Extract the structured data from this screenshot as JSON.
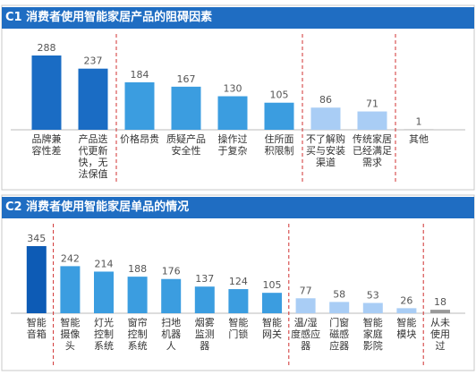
{
  "chart_data": [
    {
      "type": "bar",
      "title": "C1 消费者使用智能家居产品的阻碍因素",
      "categories": [
        "品牌兼容性差",
        "产品迭代更新快，无法保值",
        "价格昂贵",
        "质疑产品安全性",
        "操作过于复杂",
        "住所面积限制",
        "不了解购买与安装渠道",
        "传统家居已经满足需求",
        "其他"
      ],
      "values": [
        288,
        237,
        184,
        167,
        130,
        105,
        86,
        71,
        1
      ],
      "colors": [
        "#1a6cc4",
        "#1a6cc4",
        "#3b9de0",
        "#3b9de0",
        "#3b9de0",
        "#3b9de0",
        "#a9cdf5",
        "#a9cdf5",
        "#9a9a9a"
      ]
    },
    {
      "type": "bar",
      "title": "C2 消费者使用智能家居单品的情况",
      "categories": [
        "智能音箱",
        "智能摄像头",
        "灯光控制系统",
        "窗帘控制系统",
        "扫地机器人",
        "烟雾监测器",
        "智能门锁",
        "智能网关",
        "温/湿度感应器",
        "门窗磁感应器",
        "智能家庭影院",
        "智能模块",
        "从未使用过"
      ],
      "values": [
        345,
        242,
        214,
        188,
        176,
        137,
        124,
        105,
        77,
        58,
        53,
        26,
        18
      ],
      "colors": [
        "#0d5bb5",
        "#3b9de0",
        "#3b9de0",
        "#3b9de0",
        "#3b9de0",
        "#3b9de0",
        "#3b9de0",
        "#3b9de0",
        "#a9cdf5",
        "#a9cdf5",
        "#a9cdf5",
        "#a9cdf5",
        "#9a9a9a"
      ]
    }
  ]
}
